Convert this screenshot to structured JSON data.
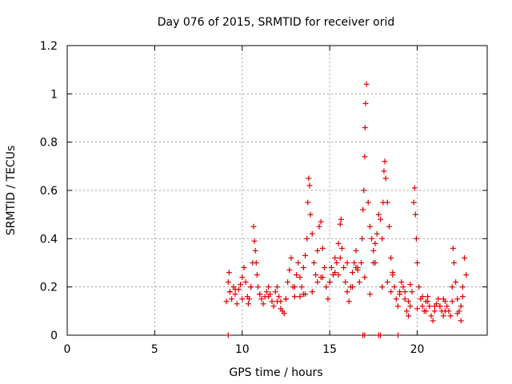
{
  "chart_data": {
    "type": "scatter",
    "title": "Day 076 of 2015, SRMTID for receiver orid",
    "xlabel": "GPS time / hours",
    "ylabel": "SRMTID / TECUs",
    "xlim": [
      0,
      24
    ],
    "ylim": [
      0,
      1.2
    ],
    "xticks": [
      0,
      5,
      10,
      15,
      20
    ],
    "xtick_labels": [
      "0",
      "5",
      "10",
      "15",
      "20"
    ],
    "yticks": [
      0,
      0.2,
      0.4,
      0.6,
      0.8,
      1.0,
      1.2
    ],
    "ytick_labels": [
      "0",
      "0.2",
      "0.4",
      "0.6",
      "0.8",
      "1",
      "1.2"
    ],
    "grid": true,
    "marker": "+",
    "color": "#e00000",
    "series": [
      {
        "name": "SRMTID",
        "x": [
          9.1,
          9.2,
          9.25,
          9.3,
          9.4,
          9.5,
          9.6,
          9.7,
          9.8,
          9.9,
          10.0,
          10.1,
          10.2,
          10.3,
          10.35,
          10.4,
          10.5,
          10.6,
          10.65,
          10.7,
          10.75,
          10.8,
          10.85,
          10.9,
          11.0,
          11.1,
          11.2,
          11.3,
          11.4,
          11.5,
          11.6,
          11.7,
          11.8,
          11.9,
          12.0,
          12.1,
          12.2,
          12.3,
          12.4,
          12.5,
          12.6,
          12.7,
          12.8,
          12.9,
          13.0,
          13.1,
          13.2,
          13.3,
          13.4,
          13.5,
          13.6,
          13.7,
          13.75,
          13.8,
          13.85,
          13.9,
          14.0,
          14.1,
          14.2,
          14.3,
          14.4,
          14.5,
          14.6,
          14.7,
          14.8,
          14.9,
          15.0,
          15.1,
          15.2,
          15.3,
          15.4,
          15.5,
          15.6,
          15.65,
          15.7,
          15.8,
          15.9,
          16.0,
          16.1,
          16.2,
          16.3,
          16.4,
          16.5,
          16.6,
          16.7,
          16.8,
          16.85,
          16.9,
          16.95,
          17.0,
          17.02,
          17.05,
          17.1,
          17.2,
          17.3,
          17.4,
          17.5,
          17.6,
          17.7,
          17.8,
          17.9,
          18.0,
          18.05,
          18.1,
          18.15,
          18.2,
          18.3,
          18.4,
          18.5,
          18.6,
          18.7,
          18.8,
          18.9,
          19.0,
          19.1,
          19.2,
          19.3,
          19.4,
          19.5,
          19.6,
          19.7,
          19.8,
          19.85,
          19.9,
          19.95,
          20.0,
          20.1,
          20.2,
          20.3,
          20.4,
          20.5,
          20.6,
          20.7,
          20.8,
          20.9,
          21.0,
          21.1,
          21.2,
          21.3,
          21.4,
          21.5,
          21.6,
          21.7,
          21.8,
          21.9,
          22.0,
          22.05,
          22.1,
          22.2,
          22.3,
          22.4,
          22.5,
          22.6,
          22.7,
          22.8,
          9.3,
          9.6,
          10.0,
          10.5,
          11.0,
          11.5,
          12.0,
          12.5,
          13.0,
          13.5,
          14.0,
          14.5,
          15.0,
          15.5,
          16.0,
          16.5,
          17.0,
          17.5,
          18.0,
          18.5,
          19.0,
          19.5,
          20.0,
          20.5,
          21.0,
          21.5,
          22.0,
          22.5,
          12.2,
          13.3,
          14.3,
          15.3,
          16.3,
          17.3,
          18.3,
          19.3,
          20.3,
          21.3,
          22.3,
          13.6,
          14.6,
          15.6,
          16.6,
          17.6,
          18.6,
          19.6,
          20.6,
          21.6,
          22.6
        ],
        "y": [
          0.14,
          0.22,
          0.26,
          0.18,
          0.15,
          0.2,
          0.17,
          0.13,
          0.19,
          0.21,
          0.24,
          0.28,
          0.22,
          0.16,
          0.13,
          0.15,
          0.2,
          0.3,
          0.45,
          0.39,
          0.35,
          0.3,
          0.25,
          0.2,
          0.17,
          0.15,
          0.13,
          0.16,
          0.18,
          0.2,
          0.17,
          0.14,
          0.12,
          0.18,
          0.2,
          0.16,
          0.14,
          0.1,
          0.09,
          0.15,
          0.22,
          0.27,
          0.32,
          0.2,
          0.16,
          0.25,
          0.3,
          0.24,
          0.2,
          0.28,
          0.33,
          0.4,
          0.55,
          0.65,
          0.62,
          0.5,
          0.42,
          0.3,
          0.25,
          0.35,
          0.45,
          0.47,
          0.36,
          0.28,
          0.2,
          0.15,
          0.22,
          0.28,
          0.25,
          0.32,
          0.3,
          0.38,
          0.46,
          0.48,
          0.36,
          0.28,
          0.22,
          0.18,
          0.14,
          0.2,
          0.26,
          0.3,
          0.35,
          0.28,
          0.22,
          0.3,
          0.4,
          0.52,
          0.6,
          0.74,
          0.86,
          0.96,
          1.04,
          0.55,
          0.45,
          0.4,
          0.35,
          0.3,
          0.42,
          0.5,
          0.48,
          0.4,
          0.55,
          0.68,
          0.72,
          0.65,
          0.55,
          0.45,
          0.32,
          0.25,
          0.2,
          0.15,
          0.12,
          0.18,
          0.22,
          0.2,
          0.15,
          0.1,
          0.08,
          0.12,
          0.18,
          0.55,
          0.61,
          0.5,
          0.4,
          0.3,
          0.2,
          0.15,
          0.12,
          0.1,
          0.14,
          0.16,
          0.12,
          0.08,
          0.06,
          0.1,
          0.13,
          0.15,
          0.12,
          0.1,
          0.08,
          0.14,
          0.12,
          0.1,
          0.08,
          0.2,
          0.36,
          0.3,
          0.22,
          0.15,
          0.1,
          0.06,
          0.2,
          0.32,
          0.25,
          0.18,
          0.19,
          0.15,
          0.2,
          0.17,
          0.16,
          0.14,
          0.15,
          0.2,
          0.17,
          0.18,
          0.24,
          0.22,
          0.25,
          0.3,
          0.28,
          0.24,
          0.3,
          0.2,
          0.18,
          0.17,
          0.14,
          0.11,
          0.1,
          0.12,
          0.15,
          0.14,
          0.12,
          0.11,
          0.16,
          0.22,
          0.26,
          0.2,
          0.17,
          0.22,
          0.18,
          0.16,
          0.12,
          0.09,
          0.17,
          0.24,
          0.32,
          0.27,
          0.38,
          0.26,
          0.21,
          0.14,
          0.1,
          0.16
        ]
      },
      {
        "name": "zero markers",
        "x": [
          9.2,
          16.9,
          17.0,
          17.8,
          17.9,
          18.9
        ],
        "y": [
          0,
          0,
          0,
          0,
          0,
          0
        ]
      }
    ]
  }
}
